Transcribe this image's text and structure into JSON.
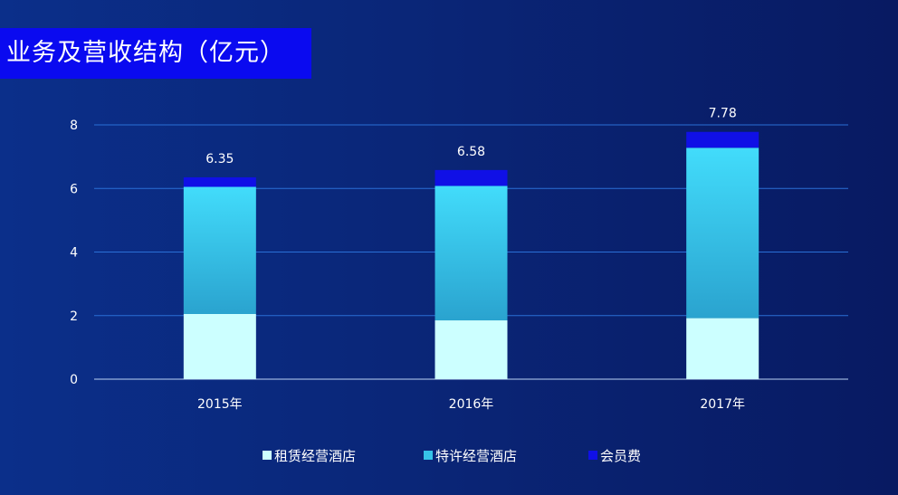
{
  "title": "业务及营收结构（亿元）",
  "chart_data": {
    "type": "bar",
    "stacked": true,
    "categories": [
      "2015年",
      "2016年",
      "2017年"
    ],
    "series": [
      {
        "name": "租赁经营酒店",
        "values": [
          2.05,
          1.85,
          1.92
        ],
        "color": "#ccffff"
      },
      {
        "name": "特许经营酒店",
        "values": [
          4.0,
          4.23,
          5.36
        ],
        "color": "#3bd2f2"
      },
      {
        "name": "会员费",
        "values": [
          0.3,
          0.5,
          0.5
        ],
        "color": "#1010e6"
      }
    ],
    "totals": [
      "6.35",
      "6.58",
      "7.78"
    ],
    "yticks": [
      0,
      2,
      4,
      6,
      8
    ],
    "ylim": [
      0,
      8
    ],
    "grid": true,
    "legend": "bottom"
  }
}
